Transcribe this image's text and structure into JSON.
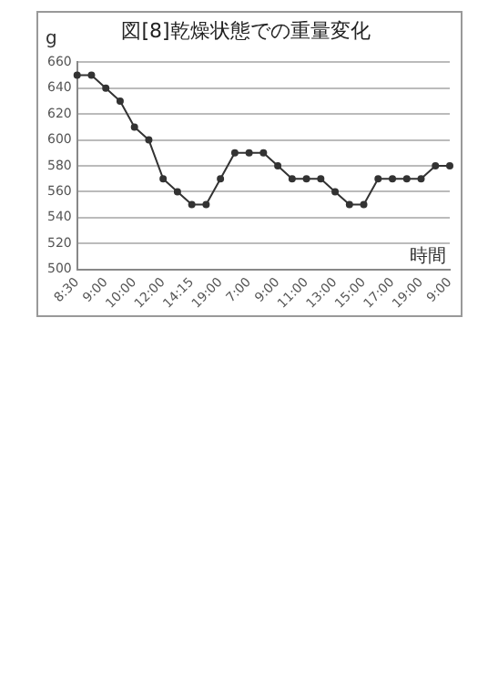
{
  "chart_data": {
    "type": "line",
    "title": "図[8]乾燥状態での重量変化",
    "xlabel": "時間",
    "ylabel": "g",
    "categories": [
      "8:30",
      null,
      "9:00",
      null,
      "10:00",
      null,
      "12:00",
      null,
      "14:15",
      null,
      "19:00",
      null,
      "7:00",
      null,
      "9:00",
      null,
      "11:00",
      null,
      "13:00",
      null,
      "15:00",
      null,
      "17:00",
      null,
      "19:00",
      null,
      "9:00"
    ],
    "series": [
      {
        "color": "#333333",
        "values": [
          650,
          650,
          640,
          630,
          610,
          600,
          570,
          560,
          550,
          550,
          570,
          590,
          590,
          590,
          580,
          570,
          570,
          570,
          560,
          550,
          550,
          570,
          570,
          570,
          570,
          580,
          580
        ]
      }
    ],
    "ylim": [
      500,
      660
    ],
    "yticks": [
      500,
      520,
      540,
      560,
      580,
      600,
      620,
      640,
      660
    ],
    "grid": "y",
    "legend": false,
    "marker": "circle",
    "line_style": "solid"
  }
}
